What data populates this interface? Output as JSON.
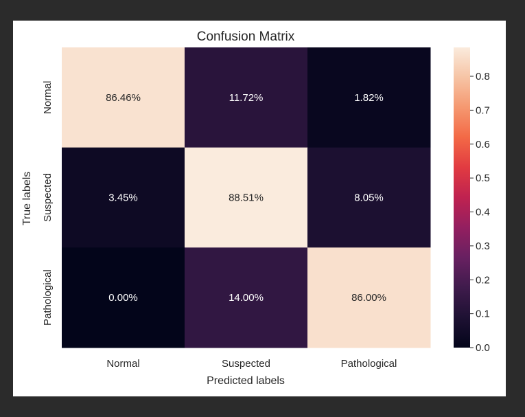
{
  "chart_data": {
    "type": "heatmap",
    "title": "Confusion Matrix",
    "xlabel": "Predicted labels",
    "ylabel": "True labels",
    "x_categories": [
      "Normal",
      "Suspected",
      "Pathological"
    ],
    "y_categories": [
      "Normal",
      "Suspected",
      "Pathological"
    ],
    "values": [
      [
        0.8646,
        0.1172,
        0.0182
      ],
      [
        0.0345,
        0.8851,
        0.0805
      ],
      [
        0.0,
        0.14,
        0.86
      ]
    ],
    "cell_labels": [
      [
        "86.46%",
        "11.72%",
        "1.82%"
      ],
      [
        "3.45%",
        "88.51%",
        "8.05%"
      ],
      [
        "0.00%",
        "14.00%",
        "86.00%"
      ]
    ],
    "colorbar": {
      "range": [
        0,
        0.8851
      ],
      "ticks": [
        0.0,
        0.1,
        0.2,
        0.3,
        0.4,
        0.5,
        0.6,
        0.7,
        0.8
      ],
      "tick_labels": [
        "0.0",
        "0.1",
        "0.2",
        "0.3",
        "0.4",
        "0.5",
        "0.6",
        "0.7",
        "0.8"
      ],
      "colormap": "rocket"
    },
    "grid": false,
    "legend": "colorbar-right"
  },
  "colors": {
    "background": "#2b2b2b",
    "figure": "#ffffff",
    "text": "#262626",
    "cell_text_dark_bg": "#ffffff",
    "cell_text_light_bg": "#262626"
  }
}
